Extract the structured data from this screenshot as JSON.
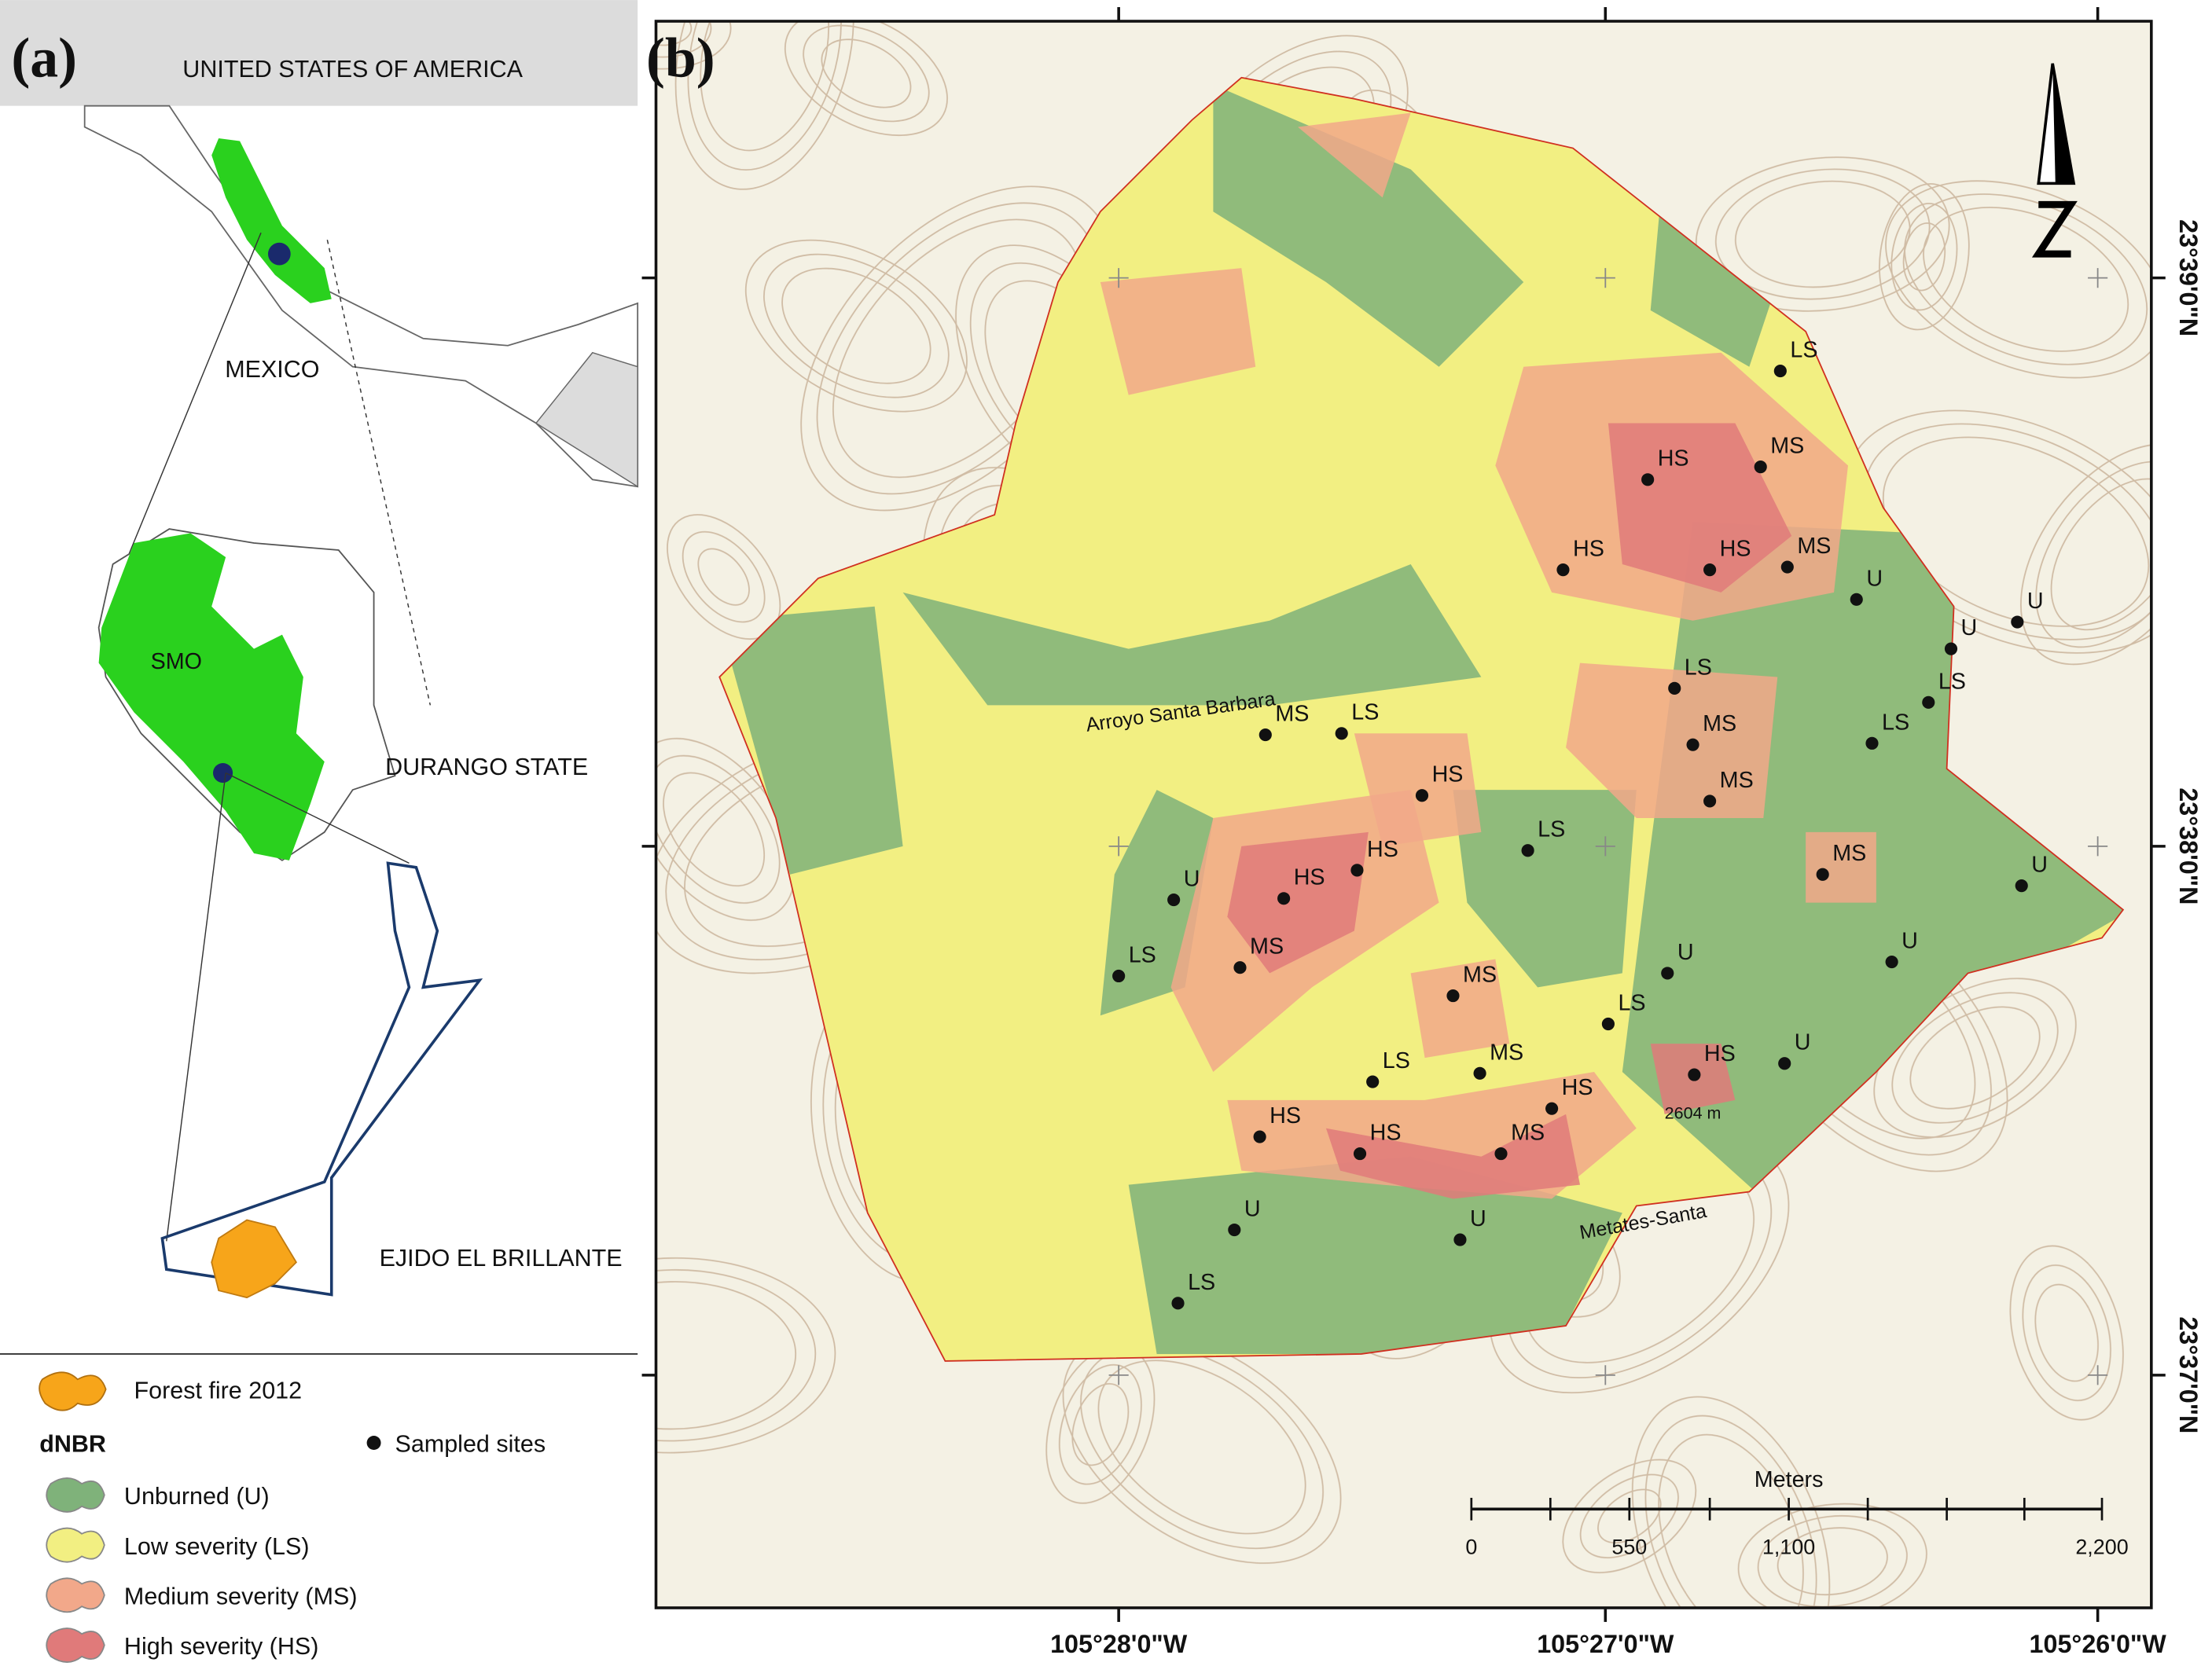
{
  "panel_a": {
    "label": "(a)",
    "usa": "UNITED STATES OF AMERICA",
    "mexico": "MEXICO",
    "smo": "SMO",
    "state": "DURANGO STATE",
    "ejido": "EJIDO EL BRILLANTE"
  },
  "legend": {
    "fire": "Forest fire 2012",
    "dnbr": "dNBR",
    "sites": "Sampled sites",
    "items": [
      "Unburned (U)",
      "Low severity (LS)",
      "Medium severity (MS)",
      "High severity (HS)"
    ]
  },
  "panel_b": {
    "label": "(b)",
    "stream": "Arroyo Santa Barbara",
    "road": "Metates-Santa",
    "elevation": "2604 m",
    "x_labels": [
      "105°28'0\"W",
      "105°27'0\"W",
      "105°26'0\"W"
    ],
    "y_labels": [
      "23°39'0\"N",
      "23°38'0\"N",
      "23°37'0\"N"
    ],
    "scale_title": "Meters",
    "scale_labels": [
      "0",
      "550",
      "1,100",
      "2,200"
    ],
    "sites": [
      "LS",
      "MS",
      "HS",
      "HS",
      "HS",
      "MS",
      "U",
      "U",
      "U",
      "LS",
      "LS",
      "MS",
      "LS",
      "MS",
      "LS",
      "HS",
      "MS",
      "LS",
      "HS",
      "HS",
      "U",
      "MS",
      "U",
      "MS",
      "LS",
      "U",
      "U",
      "MS",
      "LS",
      "MS",
      "LS",
      "HS",
      "U",
      "HS",
      "HS",
      "HS",
      "MS",
      "U",
      "U",
      "LS"
    ]
  }
}
